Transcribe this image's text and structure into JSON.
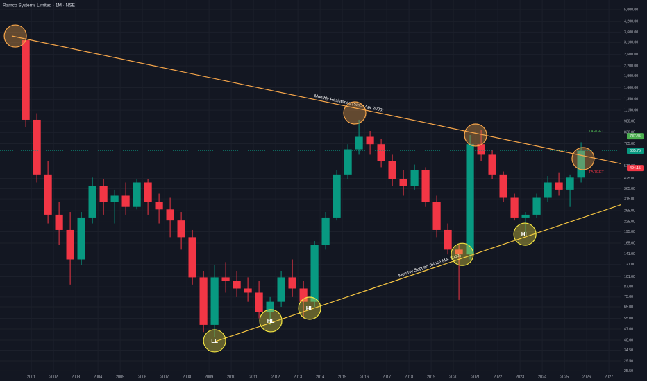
{
  "chart_data": {
    "type": "candlestick",
    "title": "Ramco Systems Limited · 1M · NSE",
    "log_scale": true,
    "grid": true,
    "up_color": "#089981",
    "down_color": "#f23645",
    "xlim": [
      1999.59,
      2027.56
    ],
    "xticks": [
      2001,
      2002,
      2003,
      2004,
      2005,
      2006,
      2007,
      2008,
      2009,
      2010,
      2011,
      2012,
      2013,
      2014,
      2015,
      2016,
      2017,
      2018,
      2019,
      2020,
      2021,
      2022,
      2023,
      2024,
      2025,
      2026,
      2027
    ],
    "ylim": [
      22,
      5760
    ],
    "yticks": [
      {
        "value": 5000,
        "label": "5,000.00"
      },
      {
        "value": 4200,
        "label": "4,200.00"
      },
      {
        "value": 3600,
        "label": "3,600.00"
      },
      {
        "value": 3100,
        "label": "3,100.00"
      },
      {
        "value": 2600,
        "label": "2,600.00"
      },
      {
        "value": 2200,
        "label": "2,200.00"
      },
      {
        "value": 1900,
        "label": "1,900.00"
      },
      {
        "value": 1600,
        "label": "1,600.00"
      },
      {
        "value": 1350,
        "label": "1,350.00"
      },
      {
        "value": 1150,
        "label": "1,150.00"
      },
      {
        "value": 980,
        "label": "980.00"
      },
      {
        "value": 830,
        "label": "830.00"
      },
      {
        "value": 705,
        "label": "705.00"
      },
      {
        "value": 510,
        "label": "510.00"
      },
      {
        "value": 425,
        "label": "425.00"
      },
      {
        "value": 365,
        "label": "365.00"
      },
      {
        "value": 315,
        "label": "315.00"
      },
      {
        "value": 265,
        "label": "265.00"
      },
      {
        "value": 225,
        "label": "225.00"
      },
      {
        "value": 195,
        "label": "195.00"
      },
      {
        "value": 165,
        "label": "165.00"
      },
      {
        "value": 141,
        "label": "141.00"
      },
      {
        "value": 121,
        "label": "121.00"
      },
      {
        "value": 101,
        "label": "101.00"
      },
      {
        "value": 87,
        "label": "87.00"
      },
      {
        "value": 75,
        "label": "75.00"
      },
      {
        "value": 65,
        "label": "65.00"
      },
      {
        "value": 55,
        "label": "55.00"
      },
      {
        "value": 47,
        "label": "47.00"
      },
      {
        "value": 40,
        "label": "40.00"
      },
      {
        "value": 34.5,
        "label": "34.50"
      },
      {
        "value": 29.5,
        "label": "29.50"
      },
      {
        "value": 25.5,
        "label": "25.50"
      }
    ],
    "x": [
      2000.5,
      2001,
      2001.5,
      2002,
      2002.5,
      2003,
      2003.5,
      2004,
      2004.5,
      2005,
      2005.5,
      2006,
      2006.5,
      2007,
      2007.5,
      2008,
      2008.5,
      2009,
      2009.5,
      2010,
      2010.5,
      2011,
      2011.5,
      2012,
      2012.5,
      2013,
      2013.5,
      2014,
      2014.5,
      2015,
      2015.5,
      2016,
      2016.5,
      2017,
      2017.5,
      2018,
      2018.5,
      2019,
      2019.5,
      2020,
      2020.5,
      2021,
      2021.5,
      2022,
      2022.5,
      2023,
      2023.5,
      2024,
      2024.5,
      2025,
      2025.5
    ],
    "open": [
      3200,
      1000,
      450,
      250,
      200,
      130,
      240,
      380,
      300,
      330,
      280,
      400,
      300,
      270,
      230,
      180,
      100,
      50,
      100,
      95,
      85,
      80,
      60,
      70,
      100,
      85,
      70,
      160,
      240,
      450,
      650,
      780,
      700,
      550,
      420,
      380,
      480,
      300,
      200,
      150,
      140,
      700,
      600,
      450,
      320,
      240,
      250,
      320,
      400,
      360,
      430
    ],
    "high": [
      3300,
      1100,
      550,
      300,
      260,
      260,
      430,
      420,
      360,
      400,
      420,
      420,
      340,
      320,
      260,
      200,
      110,
      120,
      125,
      110,
      100,
      95,
      75,
      110,
      130,
      95,
      170,
      260,
      480,
      700,
      1000,
      850,
      760,
      600,
      480,
      520,
      500,
      330,
      220,
      160,
      800,
      860,
      640,
      470,
      340,
      260,
      340,
      440,
      460,
      450,
      720
    ],
    "low": [
      900,
      400,
      220,
      160,
      90,
      120,
      220,
      250,
      220,
      250,
      270,
      250,
      220,
      180,
      150,
      90,
      45,
      42,
      80,
      75,
      70,
      55,
      50,
      65,
      75,
      55,
      65,
      150,
      230,
      420,
      600,
      600,
      500,
      380,
      330,
      360,
      280,
      180,
      140,
      72,
      130,
      550,
      420,
      300,
      230,
      190,
      240,
      300,
      330,
      280,
      400
    ],
    "close": [
      1000,
      450,
      250,
      200,
      130,
      240,
      380,
      300,
      330,
      280,
      400,
      300,
      270,
      230,
      180,
      100,
      50,
      100,
      95,
      85,
      80,
      60,
      70,
      100,
      85,
      70,
      160,
      240,
      450,
      650,
      780,
      700,
      550,
      420,
      380,
      480,
      300,
      200,
      150,
      140,
      700,
      600,
      450,
      320,
      240,
      250,
      320,
      400,
      360,
      430,
      635.75
    ],
    "trendlines": [
      {
        "label": "Monthly Resistance (Since Apr 2000)",
        "color": "#f7a64a",
        "x": [
          2000.12,
          2028.69
        ],
        "y": [
          3402,
          487
        ]
      },
      {
        "label": "Monthly Support (Since Mar 2009)",
        "color": "#f5c542",
        "x": [
          2009.28,
          2028.69
        ],
        "y": [
          39.2,
          328
        ]
      }
    ],
    "markers": [
      {
        "x": 2000.28,
        "y": 3400,
        "color": "#f7a64a"
      },
      {
        "x": 2015.56,
        "y": 1106,
        "color": "#f7a64a"
      },
      {
        "x": 2021.0,
        "y": 800,
        "color": "#f7a64a"
      },
      {
        "x": 2025.84,
        "y": 567,
        "color": "#f7a64a"
      },
      {
        "x": 2009.25,
        "y": 39.6,
        "color": "#f5e642",
        "label": "LL"
      },
      {
        "x": 2011.78,
        "y": 53.1,
        "color": "#f5e642",
        "label": "HL"
      },
      {
        "x": 2013.53,
        "y": 63.7,
        "color": "#f5e642",
        "label": "HL"
      },
      {
        "x": 2020.4,
        "y": 140,
        "color": "#f5e642"
      },
      {
        "x": 2023.22,
        "y": 188,
        "color": "#f5e642",
        "label": "HL"
      }
    ],
    "targets": [
      {
        "label": "TARGET",
        "value": 787.45,
        "color": "#4caf50"
      },
      {
        "label": "TARGET",
        "value": 494.15,
        "color": "#f23645"
      }
    ],
    "last_price": 635.75
  }
}
